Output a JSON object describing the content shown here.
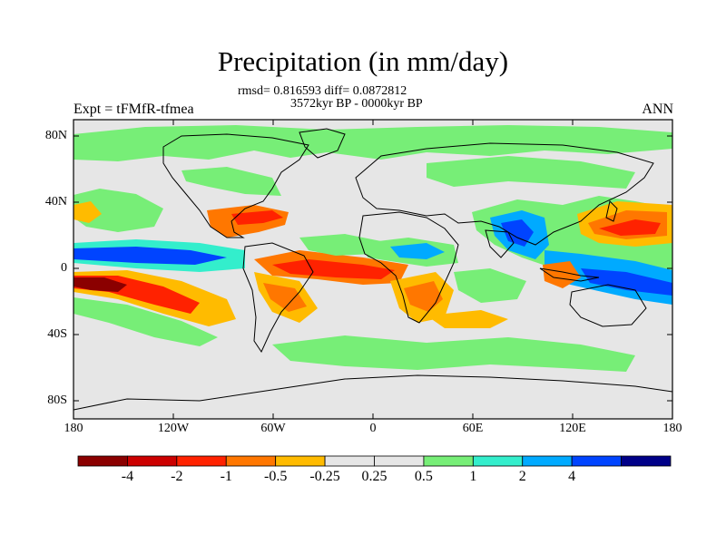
{
  "title": "Precipitation (in mm/day)",
  "stats_line": "rmsd= 0.816593 diff= 0.0872812",
  "period_line": "3572kyr BP - 0000kyr BP",
  "left_label": "Expt = tFMfR-tfmea",
  "right_label": "ANN",
  "lat_ticks": [
    "80N",
    "40N",
    "0",
    "40S",
    "80S"
  ],
  "lon_ticks": [
    "180",
    "120W",
    "60W",
    "0",
    "60E",
    "120E",
    "180"
  ],
  "colorbar": {
    "colors": [
      "#8b0000",
      "#cc0000",
      "#ff2200",
      "#ff7700",
      "#ffbb00",
      "#e6e6e6",
      "#e6e6e6",
      "#77ee77",
      "#33eecc",
      "#00aaff",
      "#0044ff",
      "#000088"
    ],
    "tick_labels": [
      "-4",
      "-2",
      "-1",
      "-0.5",
      "-0.25",
      "0.25",
      "0.5",
      "1",
      "2",
      "4"
    ],
    "levels": [
      -4,
      -2,
      -1,
      -0.5,
      -0.25,
      0.25,
      0.5,
      1,
      2,
      4
    ]
  },
  "map": {
    "background_color": "#e6e6e6",
    "lon_range": [
      -180,
      180
    ],
    "lat_range": [
      -90,
      90
    ]
  }
}
